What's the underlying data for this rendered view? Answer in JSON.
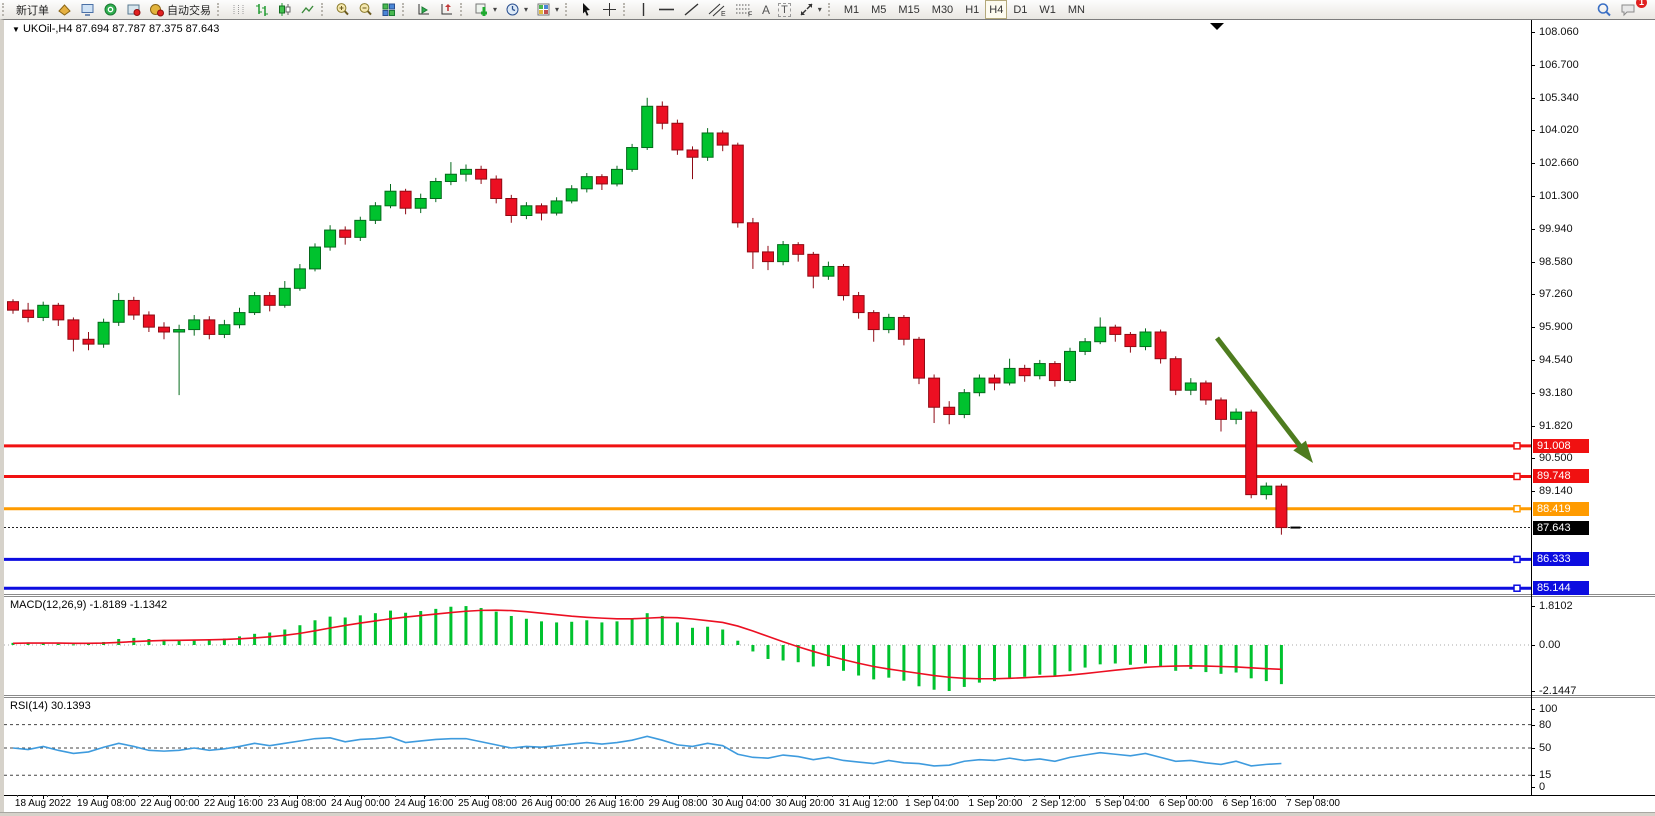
{
  "toolbar": {
    "new_order_label": "新订单",
    "autotrade_label": "自动交易",
    "annotation_letters": {
      "channel": "E",
      "fibonacci": "F",
      "text": "A",
      "text_label": "T"
    },
    "timeframes": [
      {
        "label": "M1",
        "active": false
      },
      {
        "label": "M5",
        "active": false
      },
      {
        "label": "M15",
        "active": false
      },
      {
        "label": "M30",
        "active": false
      },
      {
        "label": "H1",
        "active": false
      },
      {
        "label": "H4",
        "active": true
      },
      {
        "label": "D1",
        "active": false
      },
      {
        "label": "W1",
        "active": false
      },
      {
        "label": "MN",
        "active": false
      }
    ],
    "notification_count": "1"
  },
  "chart": {
    "title_symbol": "UKOil-,H4",
    "title_ohlc": "87.694 87.787 87.375 87.643",
    "price_ticks": [
      "108.060",
      "106.700",
      "105.340",
      "104.020",
      "102.660",
      "101.300",
      "99.940",
      "98.580",
      "97.260",
      "95.900",
      "94.540",
      "93.180",
      "91.820",
      "90.500",
      "89.140"
    ],
    "levels": [
      {
        "name": "resistance-line-1",
        "label": "91.008",
        "price": 91.008,
        "color": "#f01111",
        "width": 3
      },
      {
        "name": "resistance-line-2",
        "label": "89.748",
        "price": 89.748,
        "color": "#f01111",
        "width": 3
      },
      {
        "name": "support-line-orange",
        "label": "88.419",
        "price": 88.419,
        "color": "#ff9b00",
        "width": 3
      },
      {
        "name": "support-line-blue-1",
        "label": "86.333",
        "price": 86.333,
        "color": "#0d0de0",
        "width": 3
      },
      {
        "name": "support-line-blue-2",
        "label": "85.144",
        "price": 85.144,
        "color": "#0d0de0",
        "width": 3
      }
    ],
    "current_price": {
      "label": "87.643",
      "price": 87.643,
      "color": "#000000"
    },
    "time_labels": [
      "18 Aug 2022",
      "19 Aug 08:00",
      "22 Aug 00:00",
      "22 Aug 16:00",
      "23 Aug 08:00",
      "24 Aug 00:00",
      "24 Aug 16:00",
      "25 Aug 08:00",
      "26 Aug 00:00",
      "26 Aug 16:00",
      "29 Aug 08:00",
      "30 Aug 04:00",
      "30 Aug 20:00",
      "31 Aug 12:00",
      "1 Sep 04:00",
      "1 Sep 20:00",
      "2 Sep 12:00",
      "5 Sep 04:00",
      "6 Sep 00:00",
      "6 Sep 16:00",
      "7 Sep 08:00"
    ],
    "up_color": "#00c22e",
    "down_color": "#ec0f22",
    "arrow_color": "#4e7c1f",
    "candles": [
      [
        96.95,
        97.05,
        96.45,
        96.6
      ],
      [
        96.6,
        96.9,
        96.1,
        96.3
      ],
      [
        96.3,
        96.95,
        96.15,
        96.8
      ],
      [
        96.8,
        96.9,
        95.95,
        96.2
      ],
      [
        96.2,
        96.3,
        94.9,
        95.4
      ],
      [
        95.4,
        95.7,
        94.95,
        95.2
      ],
      [
        95.2,
        96.25,
        95.05,
        96.1
      ],
      [
        96.1,
        97.3,
        95.95,
        97.0
      ],
      [
        97.0,
        97.15,
        96.2,
        96.4
      ],
      [
        96.4,
        96.55,
        95.7,
        95.9
      ],
      [
        95.9,
        96.1,
        95.4,
        95.7
      ],
      [
        95.7,
        96.0,
        93.1,
        95.8
      ],
      [
        95.8,
        96.4,
        95.55,
        96.2
      ],
      [
        96.2,
        96.35,
        95.4,
        95.6
      ],
      [
        95.6,
        96.2,
        95.45,
        96.0
      ],
      [
        96.0,
        96.7,
        95.85,
        96.5
      ],
      [
        96.5,
        97.35,
        96.4,
        97.2
      ],
      [
        97.2,
        97.35,
        96.55,
        96.8
      ],
      [
        96.8,
        97.8,
        96.7,
        97.5
      ],
      [
        97.5,
        98.5,
        97.4,
        98.3
      ],
      [
        98.3,
        99.35,
        98.2,
        99.2
      ],
      [
        99.2,
        100.1,
        99.05,
        99.9
      ],
      [
        99.9,
        100.05,
        99.3,
        99.6
      ],
      [
        99.6,
        100.45,
        99.45,
        100.3
      ],
      [
        100.3,
        101.05,
        100.15,
        100.9
      ],
      [
        100.9,
        101.8,
        100.8,
        101.5
      ],
      [
        101.5,
        101.6,
        100.55,
        100.8
      ],
      [
        100.8,
        101.4,
        100.6,
        101.2
      ],
      [
        101.2,
        102.05,
        101.05,
        101.9
      ],
      [
        101.9,
        102.7,
        101.75,
        102.2
      ],
      [
        102.2,
        102.6,
        101.9,
        102.4
      ],
      [
        102.4,
        102.55,
        101.8,
        102.0
      ],
      [
        102.0,
        102.15,
        101.0,
        101.2
      ],
      [
        101.2,
        101.35,
        100.2,
        100.5
      ],
      [
        100.5,
        101.05,
        100.35,
        100.9
      ],
      [
        100.9,
        101.0,
        100.3,
        100.6
      ],
      [
        100.6,
        101.25,
        100.5,
        101.1
      ],
      [
        101.1,
        101.75,
        101.0,
        101.6
      ],
      [
        101.6,
        102.25,
        101.45,
        102.1
      ],
      [
        102.1,
        102.2,
        101.55,
        101.8
      ],
      [
        101.8,
        102.55,
        101.7,
        102.4
      ],
      [
        102.4,
        103.45,
        102.3,
        103.3
      ],
      [
        103.3,
        105.35,
        103.2,
        105.0
      ],
      [
        105.0,
        105.2,
        104.05,
        104.3
      ],
      [
        104.3,
        104.45,
        103.0,
        103.2
      ],
      [
        103.2,
        103.35,
        102.0,
        102.9
      ],
      [
        102.9,
        104.1,
        102.75,
        103.9
      ],
      [
        103.9,
        104.0,
        103.15,
        103.4
      ],
      [
        103.4,
        103.5,
        100.0,
        100.2
      ],
      [
        100.2,
        100.4,
        98.3,
        99.0
      ],
      [
        99.0,
        99.25,
        98.25,
        98.6
      ],
      [
        98.6,
        99.45,
        98.45,
        99.3
      ],
      [
        99.3,
        99.4,
        98.6,
        98.9
      ],
      [
        98.9,
        99.0,
        97.5,
        98.0
      ],
      [
        98.0,
        98.6,
        97.85,
        98.4
      ],
      [
        98.4,
        98.5,
        97.0,
        97.2
      ],
      [
        97.2,
        97.35,
        96.25,
        96.5
      ],
      [
        96.5,
        96.6,
        95.3,
        95.8
      ],
      [
        95.8,
        96.45,
        95.65,
        96.3
      ],
      [
        96.3,
        96.4,
        95.15,
        95.4
      ],
      [
        95.4,
        95.5,
        93.55,
        93.8
      ],
      [
        93.8,
        93.95,
        91.95,
        92.6
      ],
      [
        92.6,
        92.85,
        91.9,
        92.3
      ],
      [
        92.3,
        93.35,
        92.15,
        93.2
      ],
      [
        93.2,
        93.95,
        93.05,
        93.8
      ],
      [
        93.8,
        93.95,
        93.3,
        93.6
      ],
      [
        93.6,
        94.6,
        93.5,
        94.2
      ],
      [
        94.2,
        94.35,
        93.65,
        93.9
      ],
      [
        93.9,
        94.55,
        93.75,
        94.4
      ],
      [
        94.4,
        94.5,
        93.45,
        93.7
      ],
      [
        93.7,
        95.05,
        93.6,
        94.9
      ],
      [
        94.9,
        95.45,
        94.75,
        95.3
      ],
      [
        95.3,
        96.3,
        95.2,
        95.9
      ],
      [
        95.9,
        96.0,
        95.3,
        95.6
      ],
      [
        95.6,
        95.7,
        94.85,
        95.1
      ],
      [
        95.1,
        95.85,
        94.95,
        95.7
      ],
      [
        95.7,
        95.8,
        94.4,
        94.6
      ],
      [
        94.6,
        94.7,
        93.1,
        93.3
      ],
      [
        93.3,
        93.8,
        93.1,
        93.6
      ],
      [
        93.6,
        93.7,
        92.7,
        92.9
      ],
      [
        92.9,
        93.0,
        91.6,
        92.1
      ],
      [
        92.1,
        92.55,
        91.9,
        92.4
      ],
      [
        92.4,
        92.5,
        88.85,
        89.0
      ],
      [
        89.0,
        89.5,
        88.8,
        89.35
      ],
      [
        89.35,
        89.45,
        87.35,
        87.643
      ]
    ]
  },
  "macd": {
    "label": "MACD(12,26,9) -1.8189 -1.1342",
    "axis_ticks": [
      "1.8102",
      "0.00",
      "-2.1447"
    ],
    "hist_color": "#00c22e",
    "signal_color": "#ec0f22",
    "histogram": [
      0.1,
      0.12,
      0.1,
      0.06,
      0.03,
      0.05,
      0.14,
      0.28,
      0.33,
      0.28,
      0.24,
      0.2,
      0.24,
      0.27,
      0.3,
      0.4,
      0.52,
      0.58,
      0.72,
      0.92,
      1.15,
      1.32,
      1.28,
      1.38,
      1.48,
      1.6,
      1.5,
      1.58,
      1.68,
      1.78,
      1.81,
      1.72,
      1.55,
      1.35,
      1.22,
      1.1,
      1.05,
      1.08,
      1.15,
      1.05,
      1.1,
      1.25,
      1.48,
      1.35,
      1.05,
      0.8,
      0.85,
      0.72,
      0.2,
      -0.3,
      -0.65,
      -0.72,
      -0.8,
      -1.0,
      -0.98,
      -1.2,
      -1.42,
      -1.6,
      -1.52,
      -1.66,
      -1.92,
      -2.08,
      -2.14,
      -1.95,
      -1.75,
      -1.68,
      -1.52,
      -1.48,
      -1.38,
      -1.45,
      -1.22,
      -1.05,
      -0.9,
      -0.86,
      -0.92,
      -0.86,
      -1.0,
      -1.2,
      -1.12,
      -1.26,
      -1.34,
      -1.28,
      -1.55,
      -1.68,
      -1.82
    ],
    "signal": [
      0.08,
      0.09,
      0.09,
      0.09,
      0.08,
      0.08,
      0.09,
      0.12,
      0.16,
      0.19,
      0.21,
      0.22,
      0.23,
      0.24,
      0.26,
      0.29,
      0.33,
      0.38,
      0.45,
      0.54,
      0.66,
      0.79,
      0.91,
      1.02,
      1.12,
      1.22,
      1.3,
      1.37,
      1.44,
      1.51,
      1.57,
      1.61,
      1.62,
      1.6,
      1.55,
      1.48,
      1.41,
      1.34,
      1.29,
      1.25,
      1.22,
      1.22,
      1.25,
      1.28,
      1.27,
      1.21,
      1.13,
      1.05,
      0.88,
      0.65,
      0.4,
      0.15,
      -0.08,
      -0.3,
      -0.5,
      -0.68,
      -0.85,
      -1.0,
      -1.12,
      -1.22,
      -1.32,
      -1.42,
      -1.5,
      -1.55,
      -1.57,
      -1.57,
      -1.55,
      -1.52,
      -1.48,
      -1.45,
      -1.4,
      -1.33,
      -1.25,
      -1.17,
      -1.1,
      -1.04,
      -1.0,
      -0.98,
      -0.97,
      -0.98,
      -1.0,
      -1.02,
      -1.06,
      -1.1,
      -1.13
    ]
  },
  "rsi": {
    "label": "RSI(14) 30.1393",
    "axis_ticks": [
      "100",
      "80",
      "50",
      "15",
      "0"
    ],
    "level_lines": [
      80,
      50,
      15
    ],
    "line_color": "#3e9bde",
    "values": [
      50,
      48,
      52,
      47,
      43,
      45,
      51,
      56,
      52,
      47,
      46,
      47,
      50,
      47,
      49,
      52,
      56,
      53,
      56,
      59,
      62,
      63,
      58,
      61,
      62,
      64,
      57,
      59,
      61,
      62,
      62,
      58,
      54,
      50,
      52,
      51,
      53,
      55,
      57,
      55,
      57,
      60,
      65,
      60,
      54,
      52,
      56,
      53,
      42,
      38,
      37,
      41,
      39,
      35,
      38,
      34,
      32,
      30,
      34,
      31,
      30,
      27,
      28,
      33,
      35,
      34,
      37,
      34,
      36,
      33,
      38,
      41,
      44,
      42,
      40,
      43,
      38,
      33,
      34,
      31,
      29,
      33,
      27,
      29,
      30.14
    ]
  }
}
